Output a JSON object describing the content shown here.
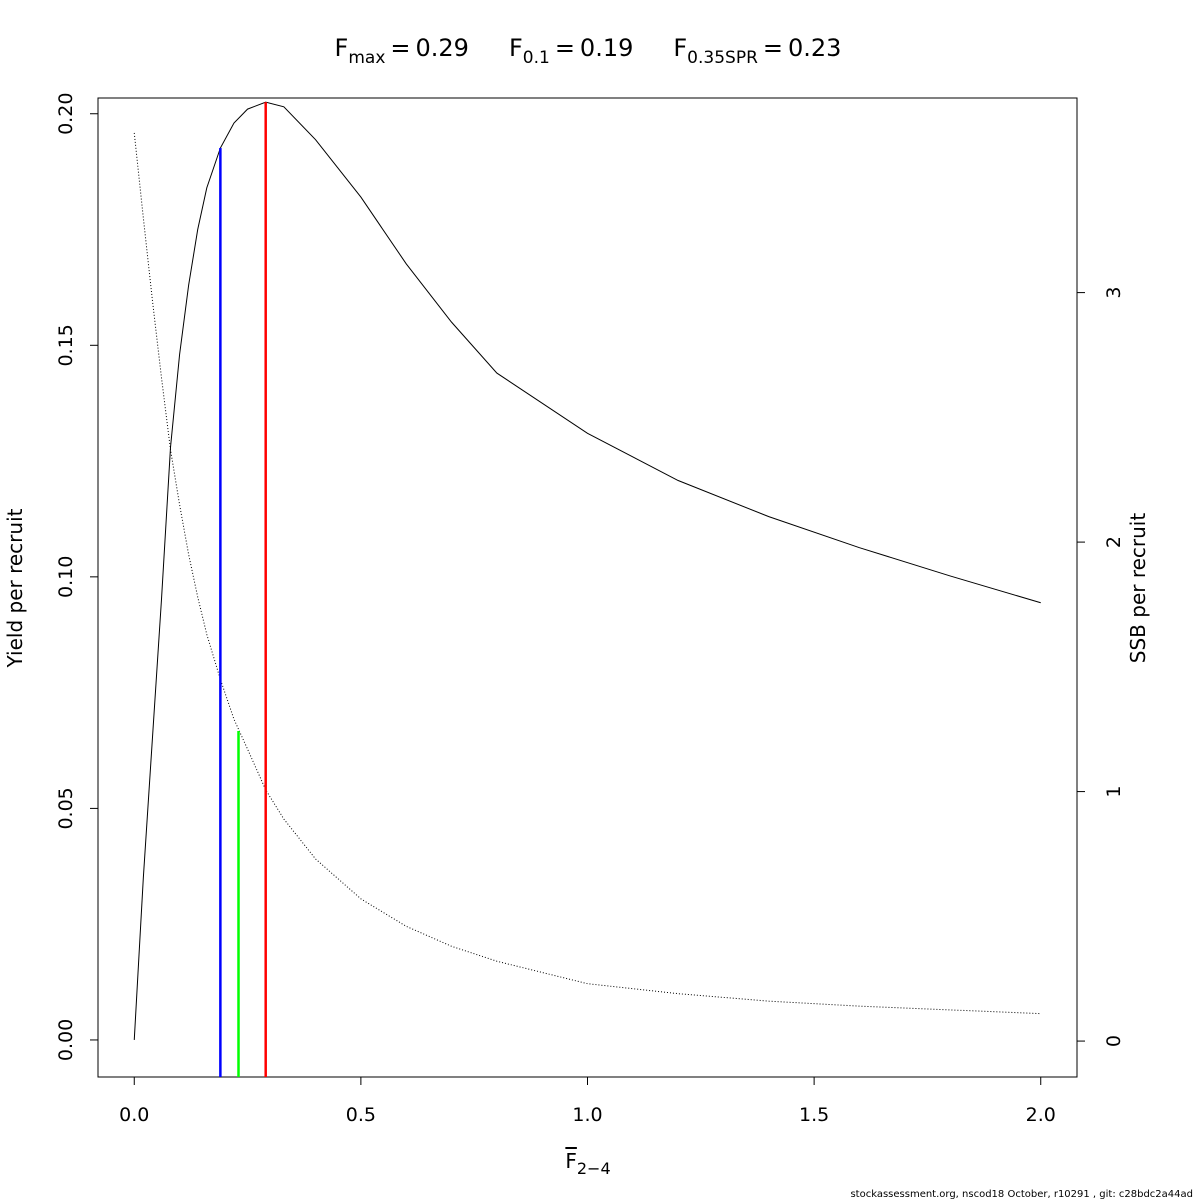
{
  "chart_data": {
    "type": "line",
    "title": [
      {
        "symbol": "F",
        "subscript": "max",
        "operator": "=",
        "value": 0.29
      },
      {
        "symbol": "F",
        "subscript": "0.1",
        "operator": "=",
        "value": 0.19
      },
      {
        "symbol": "F",
        "subscript": "0.35SPR",
        "operator": "=",
        "value": 0.23
      }
    ],
    "x_label": {
      "symbol": "F",
      "subscript": "2−4"
    },
    "y_label": "Yield per recruit",
    "y2_label": "SSB per recruit",
    "footer": "stockassessment.org, nscod18  October, r10291 , git: c28bdc2a44ad",
    "x": [
      0,
      0.02,
      0.04,
      0.06,
      0.08,
      0.1,
      0.12,
      0.14,
      0.16,
      0.19,
      0.22,
      0.25,
      0.29,
      0.33,
      0.4,
      0.5,
      0.6,
      0.7,
      0.8,
      1.0,
      1.2,
      1.4,
      1.6,
      1.8,
      2.0
    ],
    "series": [
      {
        "name": "Yield per recruit",
        "color": "#000000",
        "dash": "solid",
        "values": [
          0,
          0.035,
          0.065,
          0.095,
          0.128,
          0.148,
          0.163,
          0.175,
          0.184,
          0.1926,
          0.198,
          0.201,
          0.2025,
          0.2015,
          0.1944,
          0.182,
          0.1676,
          0.155,
          0.144,
          0.131,
          0.1208,
          0.113,
          0.1063,
          0.1002,
          0.0944
        ]
      },
      {
        "name": "SSB per recruit",
        "color": "#000000",
        "dash": "dotted",
        "axis": "y2",
        "values": [
          3.64,
          3.3,
          2.97,
          2.66,
          2.37,
          2.15,
          1.95,
          1.78,
          1.63,
          1.45,
          1.29,
          1.17,
          1.007,
          0.89,
          0.73,
          0.57,
          0.46,
          0.38,
          0.32,
          0.23,
          0.19,
          0.16,
          0.14,
          0.125,
          0.11
        ]
      }
    ],
    "reference_lines": [
      {
        "x": 0.19,
        "y": 0.1926,
        "axis": "y",
        "color": "#0000ff"
      },
      {
        "x": 0.23,
        "y": 1.243,
        "axis": "y2",
        "color": "#00ff00"
      },
      {
        "x": 0.29,
        "y": 0.2025,
        "axis": "y",
        "color": "#ff0000"
      }
    ],
    "xlim": [
      -0.08,
      2.08
    ],
    "ylim": [
      -0.008,
      0.2034
    ],
    "y2lim": [
      -0.144,
      3.78
    ],
    "xticks": [
      {
        "value": 0,
        "label": "0.0"
      },
      {
        "value": 0.5,
        "label": "0.5"
      },
      {
        "value": 1,
        "label": "1.0"
      },
      {
        "value": 1.5,
        "label": "1.5"
      },
      {
        "value": 2,
        "label": "2.0"
      }
    ],
    "yticks": [
      {
        "value": 0,
        "label": "0.00"
      },
      {
        "value": 0.05,
        "label": "0.05"
      },
      {
        "value": 0.1,
        "label": "0.10"
      },
      {
        "value": 0.15,
        "label": "0.15"
      },
      {
        "value": 0.2,
        "label": "0.20"
      }
    ],
    "y2ticks": [
      0,
      1,
      2,
      3
    ]
  }
}
